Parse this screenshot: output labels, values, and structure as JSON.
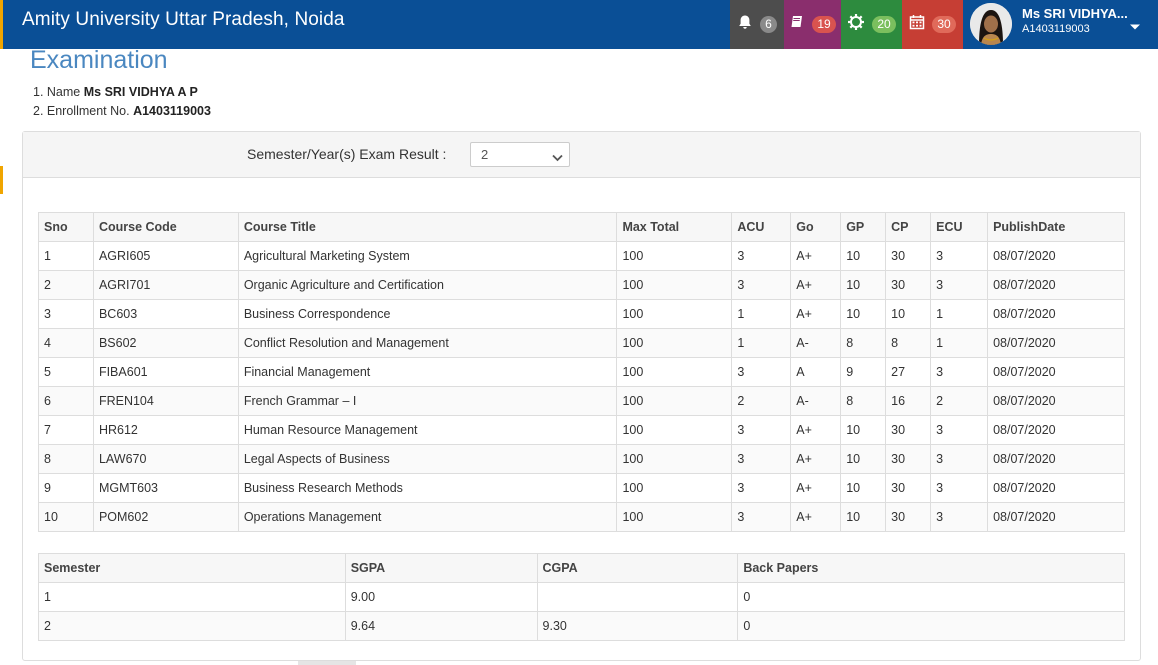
{
  "app": {
    "title": "Amity University Uttar Pradesh, Noida"
  },
  "nav": {
    "notifications": {
      "icon": "bell-icon",
      "count": "6"
    },
    "courses": {
      "icon": "book-icon",
      "count": "19"
    },
    "settings": {
      "icon": "gear-icon",
      "count": "20"
    },
    "calendar": {
      "icon": "calendar-icon",
      "count": "30"
    }
  },
  "user": {
    "name": "Ms SRI VIDHYA...",
    "id": "A1403119003"
  },
  "page": {
    "title": "Examination"
  },
  "student": {
    "name_label": "1. Name",
    "name_value": "Ms SRI VIDHYA A P",
    "enroll_label": "2. Enrollment No.",
    "enroll_value": "A1403119003"
  },
  "filter": {
    "label": "Semester/Year(s) Exam Result :",
    "selected": "2"
  },
  "results": {
    "headers": [
      "Sno",
      "Course Code",
      "Course Title",
      "Max Total",
      "ACU",
      "Go",
      "GP",
      "CP",
      "ECU",
      "PublishDate"
    ],
    "rows": [
      [
        "1",
        "AGRI605",
        "Agricultural Marketing System",
        "100",
        "3",
        "A+",
        "10",
        "30",
        "3",
        "08/07/2020"
      ],
      [
        "2",
        "AGRI701",
        "Organic Agriculture and Certification",
        "100",
        "3",
        "A+",
        "10",
        "30",
        "3",
        "08/07/2020"
      ],
      [
        "3",
        "BC603",
        "Business Correspondence",
        "100",
        "1",
        "A+",
        "10",
        "10",
        "1",
        "08/07/2020"
      ],
      [
        "4",
        "BS602",
        "Conflict Resolution and Management",
        "100",
        "1",
        "A-",
        "8",
        "8",
        "1",
        "08/07/2020"
      ],
      [
        "5",
        "FIBA601",
        "Financial Management",
        "100",
        "3",
        "A",
        "9",
        "27",
        "3",
        "08/07/2020"
      ],
      [
        "6",
        "FREN104",
        "French Grammar – I",
        "100",
        "2",
        "A-",
        "8",
        "16",
        "2",
        "08/07/2020"
      ],
      [
        "7",
        "HR612",
        "Human Resource Management",
        "100",
        "3",
        "A+",
        "10",
        "30",
        "3",
        "08/07/2020"
      ],
      [
        "8",
        "LAW670",
        "Legal Aspects of Business",
        "100",
        "3",
        "A+",
        "10",
        "30",
        "3",
        "08/07/2020"
      ],
      [
        "9",
        "MGMT603",
        "Business Research Methods",
        "100",
        "3",
        "A+",
        "10",
        "30",
        "3",
        "08/07/2020"
      ],
      [
        "10",
        "POM602",
        "Operations Management",
        "100",
        "3",
        "A+",
        "10",
        "30",
        "3",
        "08/07/2020"
      ]
    ]
  },
  "summary": {
    "headers": [
      "Semester",
      "SGPA",
      "CGPA",
      "Back Papers"
    ],
    "rows": [
      [
        "1",
        "9.00",
        "",
        "0"
      ],
      [
        "2",
        "9.64",
        "9.30",
        "0"
      ]
    ]
  },
  "colors": {
    "header_bg": "#0a4f96",
    "title_blue": "#4a87c0",
    "bell_bg": "#4d4d4d",
    "book_bg": "#8a2e6d",
    "gear_bg": "#2d8b3e",
    "calendar_bg": "#c63e34"
  }
}
